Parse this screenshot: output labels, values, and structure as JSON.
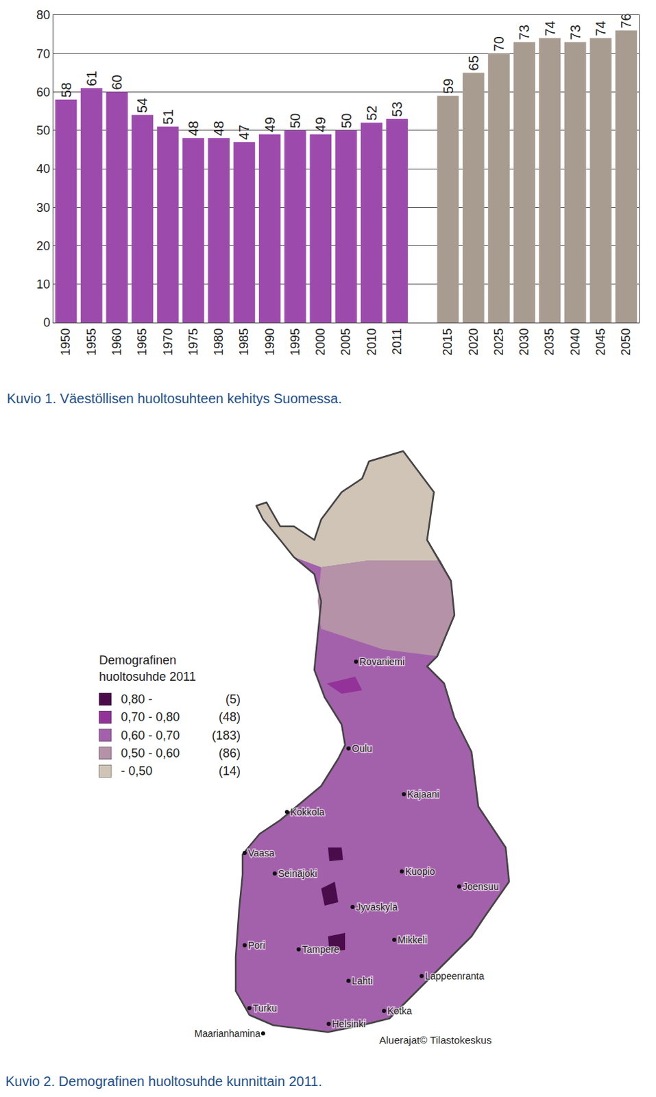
{
  "chart_data": {
    "type": "bar",
    "title": "Kuvio 1. Väestöllisen huoltosuhteen kehitys Suomessa.",
    "categories": [
      "1950",
      "1955",
      "1960",
      "1965",
      "1970",
      "1975",
      "1980",
      "1985",
      "1990",
      "1995",
      "2000",
      "2005",
      "2010",
      "2011",
      null,
      "2015",
      "2020",
      "2025",
      "2030",
      "2035",
      "2040",
      "2045",
      "2050"
    ],
    "values": [
      58,
      61,
      60,
      54,
      51,
      48,
      48,
      47,
      49,
      50,
      49,
      50,
      52,
      53,
      null,
      59,
      65,
      70,
      73,
      74,
      73,
      74,
      76
    ],
    "colors": [
      "#9c4bad",
      "#9c4bad",
      "#9c4bad",
      "#9c4bad",
      "#9c4bad",
      "#9c4bad",
      "#9c4bad",
      "#9c4bad",
      "#9c4bad",
      "#9c4bad",
      "#9c4bad",
      "#9c4bad",
      "#9c4bad",
      "#9c4bad",
      null,
      "#a89c91",
      "#a89c91",
      "#a89c91",
      "#a89c91",
      "#a89c91",
      "#a89c91",
      "#a89c91",
      "#a89c91"
    ],
    "ylim": [
      0,
      80
    ],
    "yticks": [
      0,
      10,
      20,
      30,
      40,
      50,
      60,
      70,
      80
    ],
    "grid": true,
    "data_labels": true
  },
  "map": {
    "title": "Kuvio 2. Demografinen huoltosuhde kunnittain 2011.",
    "legend_title": [
      "Demografinen",
      "huoltosuhde 2011"
    ],
    "legend": [
      {
        "label": "0,80 -",
        "count": {
          "value": 5,
          "label": "(5)"
        },
        "color": "#4b0c4b"
      },
      {
        "label": "0,70 - 0,80",
        "count": {
          "value": 48,
          "label": "(48)"
        },
        "color": "#93339a"
      },
      {
        "label": "0,60 - 0,70",
        "count": {
          "value": 183,
          "label": "(183)"
        },
        "color": "#a461ab"
      },
      {
        "label": "0,50 - 0,60",
        "count": {
          "value": 86,
          "label": "(86)"
        },
        "color": "#b592a8"
      },
      {
        "label": "- 0,50",
        "count": {
          "value": 14,
          "label": "(14)"
        },
        "color": "#cfc4b6"
      }
    ],
    "cities": [
      "Rovaniemi",
      "Oulu",
      "Kajaani",
      "Kokkola",
      "Vaasa",
      "Seinäjoki",
      "Kuopio",
      "Joensuu",
      "Jyväskylä",
      "Pori",
      "Tampere",
      "Mikkeli",
      "Lappeenranta",
      "Lahti",
      "Turku",
      "Kotka",
      "Helsinki",
      "Maarianhamina"
    ],
    "credit": "Aluerajat© Tilastokeskus"
  }
}
